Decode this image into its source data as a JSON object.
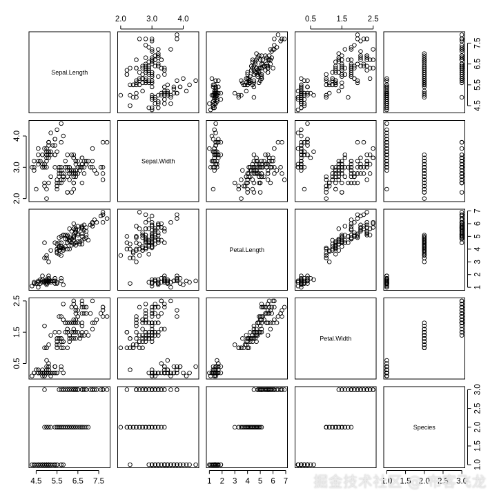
{
  "chart_data": {
    "type": "scatter",
    "variables": [
      "Sepal.Length",
      "Sepal.Width",
      "Petal.Length",
      "Petal.Width",
      "Species"
    ],
    "ticks": {
      "Sepal.Length": [
        "4.5",
        "5.5",
        "6.5",
        "7.5"
      ],
      "Sepal.Width": [
        "2.0",
        "3.0",
        "4.0"
      ],
      "Petal.Length": [
        "1",
        "2",
        "3",
        "4",
        "5",
        "6",
        "7"
      ],
      "Petal.Width": [
        "0.5",
        "1.5",
        "2.5"
      ],
      "Species": [
        "1.0",
        "1.5",
        "2.0",
        "2.5",
        "3.0"
      ]
    },
    "ranges": {
      "Sepal.Length": [
        4.3,
        7.9
      ],
      "Sepal.Width": [
        2.0,
        4.4
      ],
      "Petal.Length": [
        1.0,
        6.9
      ],
      "Petal.Width": [
        0.1,
        2.5
      ],
      "Species": [
        1,
        3
      ]
    },
    "tick_axes": {
      "top": [
        "Sepal.Width",
        "Petal.Width"
      ],
      "bottom": [
        "Sepal.Length",
        "Petal.Length",
        "Species"
      ],
      "left": [
        "Sepal.Width",
        "Petal.Width"
      ],
      "right": [
        "Sepal.Length",
        "Petal.Length",
        "Species"
      ]
    },
    "rows": [
      [
        5.1,
        3.5,
        1.4,
        0.2,
        1
      ],
      [
        4.9,
        3.0,
        1.4,
        0.2,
        1
      ],
      [
        4.7,
        3.2,
        1.3,
        0.2,
        1
      ],
      [
        4.6,
        3.1,
        1.5,
        0.2,
        1
      ],
      [
        5.0,
        3.6,
        1.4,
        0.2,
        1
      ],
      [
        5.4,
        3.9,
        1.7,
        0.4,
        1
      ],
      [
        4.6,
        3.4,
        1.4,
        0.3,
        1
      ],
      [
        5.0,
        3.4,
        1.5,
        0.2,
        1
      ],
      [
        4.4,
        2.9,
        1.4,
        0.2,
        1
      ],
      [
        4.9,
        3.1,
        1.5,
        0.1,
        1
      ],
      [
        5.4,
        3.7,
        1.5,
        0.2,
        1
      ],
      [
        4.8,
        3.4,
        1.6,
        0.2,
        1
      ],
      [
        4.8,
        3.0,
        1.4,
        0.1,
        1
      ],
      [
        4.3,
        3.0,
        1.1,
        0.1,
        1
      ],
      [
        5.8,
        4.0,
        1.2,
        0.2,
        1
      ],
      [
        5.7,
        4.4,
        1.5,
        0.4,
        1
      ],
      [
        5.4,
        3.9,
        1.3,
        0.4,
        1
      ],
      [
        5.1,
        3.5,
        1.4,
        0.3,
        1
      ],
      [
        5.7,
        3.8,
        1.7,
        0.3,
        1
      ],
      [
        5.1,
        3.8,
        1.5,
        0.3,
        1
      ],
      [
        5.4,
        3.4,
        1.7,
        0.2,
        1
      ],
      [
        5.1,
        3.7,
        1.5,
        0.4,
        1
      ],
      [
        4.6,
        3.6,
        1.0,
        0.2,
        1
      ],
      [
        5.1,
        3.3,
        1.7,
        0.5,
        1
      ],
      [
        4.8,
        3.4,
        1.9,
        0.2,
        1
      ],
      [
        5.0,
        3.0,
        1.6,
        0.2,
        1
      ],
      [
        5.0,
        3.4,
        1.6,
        0.4,
        1
      ],
      [
        5.2,
        3.5,
        1.5,
        0.2,
        1
      ],
      [
        5.2,
        3.4,
        1.4,
        0.2,
        1
      ],
      [
        4.7,
        3.2,
        1.6,
        0.2,
        1
      ],
      [
        4.8,
        3.1,
        1.6,
        0.2,
        1
      ],
      [
        5.4,
        3.4,
        1.5,
        0.4,
        1
      ],
      [
        5.2,
        4.1,
        1.5,
        0.1,
        1
      ],
      [
        5.5,
        4.2,
        1.4,
        0.2,
        1
      ],
      [
        4.9,
        3.1,
        1.5,
        0.2,
        1
      ],
      [
        5.0,
        3.2,
        1.2,
        0.2,
        1
      ],
      [
        5.5,
        3.5,
        1.3,
        0.2,
        1
      ],
      [
        4.9,
        3.6,
        1.4,
        0.1,
        1
      ],
      [
        4.4,
        3.0,
        1.3,
        0.2,
        1
      ],
      [
        5.1,
        3.4,
        1.5,
        0.2,
        1
      ],
      [
        5.0,
        3.5,
        1.3,
        0.3,
        1
      ],
      [
        4.5,
        2.3,
        1.3,
        0.3,
        1
      ],
      [
        4.4,
        3.2,
        1.3,
        0.2,
        1
      ],
      [
        5.0,
        3.5,
        1.6,
        0.6,
        1
      ],
      [
        5.1,
        3.8,
        1.9,
        0.4,
        1
      ],
      [
        4.8,
        3.0,
        1.4,
        0.3,
        1
      ],
      [
        5.1,
        3.8,
        1.6,
        0.2,
        1
      ],
      [
        4.6,
        3.2,
        1.4,
        0.2,
        1
      ],
      [
        5.3,
        3.7,
        1.5,
        0.2,
        1
      ],
      [
        5.0,
        3.3,
        1.4,
        0.2,
        1
      ],
      [
        7.0,
        3.2,
        4.7,
        1.4,
        2
      ],
      [
        6.4,
        3.2,
        4.5,
        1.5,
        2
      ],
      [
        6.9,
        3.1,
        4.9,
        1.5,
        2
      ],
      [
        5.5,
        2.3,
        4.0,
        1.3,
        2
      ],
      [
        6.5,
        2.8,
        4.6,
        1.5,
        2
      ],
      [
        5.7,
        2.8,
        4.5,
        1.3,
        2
      ],
      [
        6.3,
        3.3,
        4.7,
        1.6,
        2
      ],
      [
        4.9,
        2.4,
        3.3,
        1.0,
        2
      ],
      [
        6.6,
        2.9,
        4.6,
        1.3,
        2
      ],
      [
        5.2,
        2.7,
        3.9,
        1.4,
        2
      ],
      [
        5.0,
        2.0,
        3.5,
        1.0,
        2
      ],
      [
        5.9,
        3.0,
        4.2,
        1.5,
        2
      ],
      [
        6.0,
        2.2,
        4.0,
        1.0,
        2
      ],
      [
        6.1,
        2.9,
        4.7,
        1.4,
        2
      ],
      [
        5.6,
        2.9,
        3.6,
        1.3,
        2
      ],
      [
        6.7,
        3.1,
        4.4,
        1.4,
        2
      ],
      [
        5.6,
        3.0,
        4.5,
        1.5,
        2
      ],
      [
        5.8,
        2.7,
        4.1,
        1.0,
        2
      ],
      [
        6.2,
        2.2,
        4.5,
        1.5,
        2
      ],
      [
        5.6,
        2.5,
        3.9,
        1.1,
        2
      ],
      [
        5.9,
        3.2,
        4.8,
        1.8,
        2
      ],
      [
        6.1,
        2.8,
        4.0,
        1.3,
        2
      ],
      [
        6.3,
        2.5,
        4.9,
        1.5,
        2
      ],
      [
        6.1,
        2.8,
        4.7,
        1.2,
        2
      ],
      [
        6.4,
        2.9,
        4.3,
        1.3,
        2
      ],
      [
        6.6,
        3.0,
        4.4,
        1.4,
        2
      ],
      [
        6.8,
        2.8,
        4.8,
        1.4,
        2
      ],
      [
        6.7,
        3.0,
        5.0,
        1.7,
        2
      ],
      [
        6.0,
        2.9,
        4.5,
        1.5,
        2
      ],
      [
        5.7,
        2.6,
        3.5,
        1.0,
        2
      ],
      [
        5.5,
        2.4,
        3.8,
        1.1,
        2
      ],
      [
        5.5,
        2.4,
        3.7,
        1.0,
        2
      ],
      [
        5.8,
        2.7,
        3.9,
        1.2,
        2
      ],
      [
        6.0,
        2.7,
        5.1,
        1.6,
        2
      ],
      [
        5.4,
        3.0,
        4.5,
        1.5,
        2
      ],
      [
        6.0,
        3.4,
        4.5,
        1.6,
        2
      ],
      [
        6.7,
        3.1,
        4.7,
        1.5,
        2
      ],
      [
        6.3,
        2.3,
        4.4,
        1.3,
        2
      ],
      [
        5.6,
        3.0,
        4.1,
        1.3,
        2
      ],
      [
        5.5,
        2.5,
        4.0,
        1.3,
        2
      ],
      [
        5.5,
        2.6,
        4.4,
        1.2,
        2
      ],
      [
        6.1,
        3.0,
        4.6,
        1.4,
        2
      ],
      [
        5.8,
        2.6,
        4.0,
        1.2,
        2
      ],
      [
        5.0,
        2.3,
        3.3,
        1.0,
        2
      ],
      [
        5.6,
        2.7,
        4.2,
        1.3,
        2
      ],
      [
        5.7,
        3.0,
        4.2,
        1.2,
        2
      ],
      [
        5.7,
        2.9,
        4.2,
        1.3,
        2
      ],
      [
        6.2,
        2.9,
        4.3,
        1.3,
        2
      ],
      [
        5.1,
        2.5,
        3.0,
        1.1,
        2
      ],
      [
        5.7,
        2.8,
        4.1,
        1.3,
        2
      ],
      [
        6.3,
        3.3,
        6.0,
        2.5,
        3
      ],
      [
        5.8,
        2.7,
        5.1,
        1.9,
        3
      ],
      [
        7.1,
        3.0,
        5.9,
        2.1,
        3
      ],
      [
        6.3,
        2.9,
        5.6,
        1.8,
        3
      ],
      [
        6.5,
        3.0,
        5.8,
        2.2,
        3
      ],
      [
        7.6,
        3.0,
        6.6,
        2.1,
        3
      ],
      [
        4.9,
        2.5,
        4.5,
        1.7,
        3
      ],
      [
        7.3,
        2.9,
        6.3,
        1.8,
        3
      ],
      [
        6.7,
        2.5,
        5.8,
        1.8,
        3
      ],
      [
        7.2,
        3.6,
        6.1,
        2.5,
        3
      ],
      [
        6.5,
        3.2,
        5.1,
        2.0,
        3
      ],
      [
        6.4,
        2.7,
        5.3,
        1.9,
        3
      ],
      [
        6.8,
        3.0,
        5.5,
        2.1,
        3
      ],
      [
        5.7,
        2.5,
        5.0,
        2.0,
        3
      ],
      [
        5.8,
        2.8,
        5.1,
        2.4,
        3
      ],
      [
        6.4,
        3.2,
        5.3,
        2.3,
        3
      ],
      [
        6.5,
        3.0,
        5.5,
        1.8,
        3
      ],
      [
        7.7,
        3.8,
        6.7,
        2.2,
        3
      ],
      [
        7.7,
        2.6,
        6.9,
        2.3,
        3
      ],
      [
        6.0,
        2.2,
        5.0,
        1.5,
        3
      ],
      [
        6.9,
        3.2,
        5.7,
        2.3,
        3
      ],
      [
        5.6,
        2.8,
        4.9,
        2.0,
        3
      ],
      [
        7.7,
        2.8,
        6.7,
        2.0,
        3
      ],
      [
        6.3,
        2.7,
        4.9,
        1.8,
        3
      ],
      [
        6.7,
        3.3,
        5.7,
        2.1,
        3
      ],
      [
        7.2,
        3.2,
        6.0,
        1.8,
        3
      ],
      [
        6.2,
        2.8,
        4.8,
        1.8,
        3
      ],
      [
        6.1,
        3.0,
        4.9,
        1.8,
        3
      ],
      [
        6.4,
        2.8,
        5.6,
        2.1,
        3
      ],
      [
        7.2,
        3.0,
        5.8,
        1.6,
        3
      ],
      [
        7.4,
        2.8,
        6.1,
        1.9,
        3
      ],
      [
        7.9,
        3.8,
        6.4,
        2.0,
        3
      ],
      [
        6.4,
        2.8,
        5.6,
        2.2,
        3
      ],
      [
        6.3,
        2.8,
        5.1,
        1.5,
        3
      ],
      [
        6.1,
        2.6,
        5.6,
        1.4,
        3
      ],
      [
        7.7,
        3.0,
        6.1,
        2.3,
        3
      ],
      [
        6.3,
        3.4,
        5.6,
        2.4,
        3
      ],
      [
        6.4,
        3.1,
        5.5,
        1.8,
        3
      ],
      [
        6.0,
        3.0,
        4.8,
        1.8,
        3
      ],
      [
        6.9,
        3.1,
        5.4,
        2.1,
        3
      ],
      [
        6.7,
        3.1,
        5.6,
        2.4,
        3
      ],
      [
        6.9,
        3.1,
        5.1,
        2.3,
        3
      ],
      [
        5.8,
        2.7,
        5.1,
        1.9,
        3
      ],
      [
        6.8,
        3.2,
        5.9,
        2.3,
        3
      ],
      [
        6.7,
        3.3,
        5.7,
        2.5,
        3
      ],
      [
        6.7,
        3.0,
        5.2,
        2.3,
        3
      ],
      [
        6.3,
        2.5,
        5.0,
        1.9,
        3
      ],
      [
        6.5,
        3.0,
        5.2,
        2.0,
        3
      ],
      [
        6.2,
        3.4,
        5.4,
        2.3,
        3
      ],
      [
        5.9,
        3.0,
        5.1,
        1.8,
        3
      ]
    ]
  },
  "watermark": "掘金技术社区 @ 布客飞龙"
}
